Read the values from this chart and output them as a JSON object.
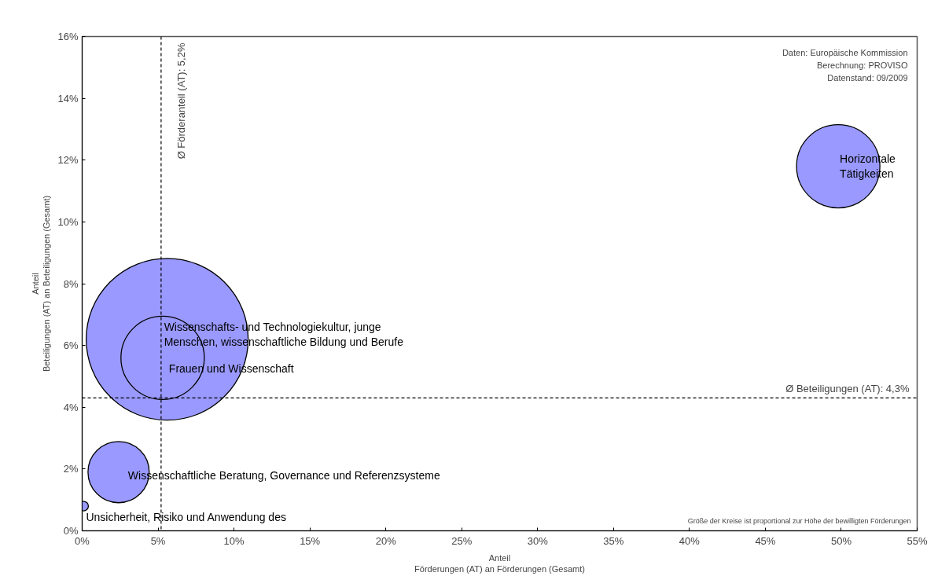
{
  "chart_data": {
    "type": "bubble",
    "xlabel": "Anteil\nFörderungen (AT) an Förderungen (Gesamt)",
    "ylabel": "Anteil\nBeteiligungen (AT) an Beteiligungen (Gesamt)",
    "x": [
      49.8,
      5.6,
      5.3,
      2.4,
      0.1
    ],
    "values": [
      11.8,
      6.2,
      5.6,
      1.9,
      0.8
    ],
    "sizes": [
      0.265,
      1,
      0.265,
      0.143,
      0.0034
    ],
    "color": "#9999ff",
    "xlim": [
      0,
      55
    ],
    "ylim": [
      0,
      16
    ],
    "xticks": [
      {
        "value": 0,
        "label": "0%"
      },
      {
        "value": 5,
        "label": "5%"
      },
      {
        "value": 10,
        "label": "10%"
      },
      {
        "value": 15,
        "label": "15%"
      },
      {
        "value": 20,
        "label": "20%"
      },
      {
        "value": 25,
        "label": "25%"
      },
      {
        "value": 30,
        "label": "30%"
      },
      {
        "value": 35,
        "label": "35%"
      },
      {
        "value": 40,
        "label": "40%"
      },
      {
        "value": 45,
        "label": "45%"
      },
      {
        "value": 50,
        "label": "50%"
      },
      {
        "value": 55,
        "label": "55%"
      }
    ],
    "yticks": [
      {
        "value": 0,
        "label": "0%"
      },
      {
        "value": 2,
        "label": "2%"
      },
      {
        "value": 4,
        "label": "4%"
      },
      {
        "value": 6,
        "label": "6%"
      },
      {
        "value": 8,
        "label": "8%"
      },
      {
        "value": 10,
        "label": "10%"
      },
      {
        "value": 12,
        "label": "12%"
      },
      {
        "value": 14,
        "label": "14%"
      },
      {
        "value": 16,
        "label": "16%"
      }
    ],
    "ref_lines": [
      {
        "axis": "x",
        "value": 5.2,
        "label": "Ø Förderanteil (AT): 5,2%",
        "color": "#000000",
        "line_style": "dashed"
      },
      {
        "axis": "y",
        "value": 4.3,
        "label": "Ø Beteiligungen (AT): 4,3%",
        "color": "#000000",
        "line_style": "dashed"
      }
    ],
    "annotations": [
      "Daten: Europäische Kommission",
      "Berechnung: PROVISO",
      "Datenstand: 09/2009",
      "Größe der Kreise ist proportional zur Höhe der bewilligten Förderungen",
      {
        "text": "Horizontale\nTätigkeiten",
        "x": 49.8,
        "y": 11.8
      },
      {
        "text": "Wissenschafts- und Technologiekultur, junge\nMenschen, wissenschaftliche Bildung und Berufe",
        "x": 5.6,
        "y": 6.2
      },
      {
        "text": "Frauen und Wissenschaft",
        "x": 5.3,
        "y": 5.6
      },
      {
        "text": "Wissenschaftliche Beratung, Governance und Referenzsysteme",
        "x": 2.4,
        "y": 1.9
      },
      {
        "text": "Unsicherheit, Risiko und Anwendung des",
        "x": 0.1,
        "y": 0.8
      }
    ],
    "grid": false
  }
}
